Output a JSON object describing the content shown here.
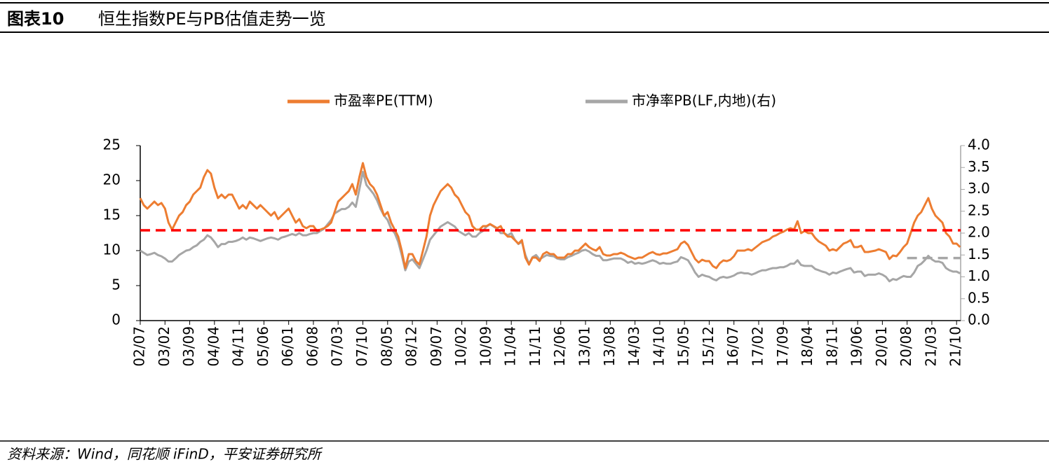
{
  "chart_data": {
    "type": "line",
    "figure_label": "图表10",
    "title": "恒生指数PE与PB估值走势一览",
    "source": "资料来源：Wind，同花顺 iFinD，平安证券研究所",
    "categories": [
      "02/07",
      null,
      null,
      null,
      null,
      null,
      null,
      "03/02",
      null,
      null,
      null,
      null,
      null,
      null,
      "03/09",
      null,
      null,
      null,
      null,
      null,
      null,
      "04/04",
      null,
      null,
      null,
      null,
      null,
      null,
      "04/11",
      null,
      null,
      null,
      null,
      null,
      null,
      "05/06",
      null,
      null,
      null,
      null,
      null,
      null,
      "06/01",
      null,
      null,
      null,
      null,
      null,
      null,
      "06/08",
      null,
      null,
      null,
      null,
      null,
      null,
      "07/03",
      null,
      null,
      null,
      null,
      null,
      null,
      "07/10",
      null,
      null,
      null,
      null,
      null,
      null,
      "08/05",
      null,
      null,
      null,
      null,
      null,
      null,
      "08/12",
      null,
      null,
      null,
      null,
      null,
      null,
      "09/07",
      null,
      null,
      null,
      null,
      null,
      null,
      "10/02",
      null,
      null,
      null,
      null,
      null,
      null,
      "10/09",
      null,
      null,
      null,
      null,
      null,
      null,
      "11/04",
      null,
      null,
      null,
      null,
      null,
      null,
      "11/11",
      null,
      null,
      null,
      null,
      null,
      null,
      "12/06",
      null,
      null,
      null,
      null,
      null,
      null,
      "13/01",
      null,
      null,
      null,
      null,
      null,
      null,
      "13/08",
      null,
      null,
      null,
      null,
      null,
      null,
      "14/03",
      null,
      null,
      null,
      null,
      null,
      null,
      "14/10",
      null,
      null,
      null,
      null,
      null,
      null,
      "15/05",
      null,
      null,
      null,
      null,
      null,
      null,
      "15/12",
      null,
      null,
      null,
      null,
      null,
      null,
      "16/07",
      null,
      null,
      null,
      null,
      null,
      null,
      "17/02",
      null,
      null,
      null,
      null,
      null,
      null,
      "17/09",
      null,
      null,
      null,
      null,
      null,
      null,
      "18/04",
      null,
      null,
      null,
      null,
      null,
      null,
      "18/11",
      null,
      null,
      null,
      null,
      null,
      null,
      "19/06",
      null,
      null,
      null,
      null,
      null,
      null,
      "20/01",
      null,
      null,
      null,
      null,
      null,
      null,
      "20/08",
      null,
      null,
      null,
      null,
      null,
      null,
      "21/03",
      null,
      null,
      null,
      null,
      null,
      null,
      "21/10",
      null
    ],
    "series": [
      {
        "name": "市盈率PE(TTM)",
        "color": "#ed7d31",
        "values": [
          17.5,
          16.5,
          16,
          16.5,
          17,
          16.5,
          16.8,
          16,
          14,
          13,
          14,
          15,
          15.5,
          16.5,
          17,
          18,
          18.5,
          19,
          20.5,
          21.5,
          21,
          19,
          17.5,
          18,
          17.5,
          18,
          18,
          17,
          16,
          16.5,
          16,
          17,
          16.5,
          16,
          16.5,
          16,
          15.5,
          15,
          15.5,
          14.5,
          15,
          15.5,
          16,
          15,
          14,
          14.5,
          13.5,
          13.2,
          13.5,
          13.5,
          12.8,
          13,
          13.2,
          13.5,
          14,
          15.5,
          17,
          17.5,
          18,
          18.5,
          19.5,
          18,
          20.5,
          22.5,
          20.5,
          19.5,
          19,
          18,
          16.5,
          15,
          15.5,
          14,
          13,
          12,
          10,
          7.5,
          9.5,
          9.5,
          8.5,
          8,
          10,
          12,
          15,
          16.5,
          17.5,
          18.5,
          19,
          19.5,
          19,
          18,
          17.5,
          16.5,
          15.5,
          15,
          13.5,
          13,
          13,
          13.5,
          13.5,
          13.8,
          13.5,
          13.2,
          13.5,
          12.5,
          12,
          12,
          11.5,
          11,
          11.5,
          9,
          8,
          9,
          9,
          8.5,
          9.5,
          9.8,
          9.5,
          9.5,
          9,
          9,
          9,
          9.5,
          9.5,
          10,
          10,
          10.5,
          11,
          10.5,
          10.2,
          10,
          10.5,
          9.5,
          9.3,
          9.3,
          9.5,
          9.5,
          9.7,
          9.5,
          9.2,
          9,
          8.8,
          9,
          9,
          9.3,
          9.6,
          9.8,
          9.5,
          9.4,
          9.6,
          9.6,
          9.8,
          10,
          10.2,
          11,
          11.3,
          10.8,
          9.8,
          8.8,
          8.3,
          8.7,
          8.5,
          8.5,
          7.8,
          7.5,
          8.2,
          8.6,
          8.5,
          8.7,
          9.2,
          10,
          10,
          10,
          10.2,
          10,
          10.4,
          10.8,
          11.2,
          11.4,
          11.6,
          12,
          12.2,
          12.5,
          12.7,
          13,
          13.2,
          13,
          14.2,
          12.5,
          12.8,
          12.5,
          12.5,
          11.8,
          11.3,
          11,
          10.7,
          10,
          10.2,
          10,
          10.5,
          11,
          11.2,
          11.5,
          10.5,
          10.5,
          10.7,
          9.8,
          9.8,
          9.9,
          10,
          10.2,
          10,
          9.8,
          8.8,
          9.3,
          9.2,
          9.8,
          10.5,
          11,
          12.5,
          14,
          15,
          15.5,
          16.5,
          17.5,
          16,
          15,
          14.5,
          14,
          12.5,
          12,
          11,
          11,
          10.5
        ]
      },
      {
        "name": "市净率PB(LF,内地)(右)",
        "color": "#a6a6a6",
        "axis": "y2",
        "values": [
          1.6,
          1.55,
          1.5,
          1.52,
          1.55,
          1.5,
          1.47,
          1.42,
          1.35,
          1.35,
          1.42,
          1.5,
          1.55,
          1.6,
          1.62,
          1.68,
          1.72,
          1.8,
          1.85,
          1.95,
          1.9,
          1.8,
          1.68,
          1.75,
          1.75,
          1.8,
          1.8,
          1.82,
          1.85,
          1.9,
          1.85,
          1.9,
          1.88,
          1.85,
          1.82,
          1.85,
          1.88,
          1.9,
          1.88,
          1.85,
          1.9,
          1.92,
          1.95,
          1.98,
          1.95,
          2.0,
          1.95,
          1.95,
          1.98,
          2.0,
          2.0,
          2.05,
          2.1,
          2.2,
          2.3,
          2.45,
          2.5,
          2.55,
          2.55,
          2.6,
          2.7,
          2.6,
          3.0,
          3.4,
          3.1,
          3.0,
          2.9,
          2.75,
          2.55,
          2.4,
          2.3,
          2.1,
          2.0,
          1.8,
          1.5,
          1.15,
          1.35,
          1.4,
          1.3,
          1.2,
          1.4,
          1.6,
          1.85,
          1.95,
          2.05,
          2.15,
          2.2,
          2.25,
          2.2,
          2.15,
          2.05,
          2.0,
          1.95,
          2.0,
          1.92,
          1.92,
          2.0,
          2.05,
          2.15,
          2.2,
          2.15,
          2.1,
          2.0,
          2.0,
          1.95,
          2.0,
          1.85,
          1.75,
          1.8,
          1.5,
          1.3,
          1.45,
          1.5,
          1.4,
          1.45,
          1.5,
          1.48,
          1.47,
          1.42,
          1.4,
          1.4,
          1.45,
          1.48,
          1.52,
          1.55,
          1.6,
          1.62,
          1.58,
          1.52,
          1.48,
          1.48,
          1.38,
          1.38,
          1.4,
          1.42,
          1.42,
          1.42,
          1.38,
          1.32,
          1.35,
          1.3,
          1.32,
          1.3,
          1.32,
          1.35,
          1.38,
          1.35,
          1.3,
          1.32,
          1.3,
          1.3,
          1.33,
          1.35,
          1.45,
          1.42,
          1.38,
          1.25,
          1.1,
          1.0,
          1.05,
          1.02,
          1.0,
          0.95,
          0.92,
          0.98,
          1.0,
          0.98,
          1.0,
          1.03,
          1.08,
          1.1,
          1.08,
          1.08,
          1.05,
          1.08,
          1.12,
          1.15,
          1.15,
          1.18,
          1.2,
          1.2,
          1.22,
          1.22,
          1.25,
          1.3,
          1.3,
          1.38,
          1.27,
          1.25,
          1.25,
          1.25,
          1.18,
          1.15,
          1.12,
          1.1,
          1.05,
          1.1,
          1.08,
          1.12,
          1.15,
          1.18,
          1.2,
          1.1,
          1.12,
          1.12,
          1.02,
          1.05,
          1.05,
          1.05,
          1.08,
          1.05,
          1.0,
          0.9,
          0.95,
          0.93,
          0.98,
          1.02,
          1.0,
          1.0,
          1.1,
          1.25,
          1.3,
          1.38,
          1.48,
          1.4,
          1.35,
          1.35,
          1.32,
          1.2,
          1.15,
          1.12,
          1.12,
          1.08
        ]
      }
    ],
    "reference_lines": [
      {
        "value": 12.9,
        "axis": "y",
        "color": "#ff0000"
      },
      {
        "value": 1.43,
        "axis": "y2",
        "color": "#a6a6a6",
        "start": "20/08"
      }
    ],
    "ylim": [
      0,
      25
    ],
    "yticks": [
      0,
      5,
      10,
      15,
      20,
      25
    ],
    "y2lim": [
      0,
      4
    ],
    "y2ticks": [
      {
        "value": 0,
        "label": "0.0"
      },
      0.5,
      {
        "value": 1,
        "label": "1.0"
      },
      1.5,
      {
        "value": 2,
        "label": "2.0"
      },
      2.5,
      {
        "value": 3,
        "label": "3.0"
      },
      3.5,
      {
        "value": 4,
        "label": "4.0"
      }
    ],
    "legend": "top"
  }
}
